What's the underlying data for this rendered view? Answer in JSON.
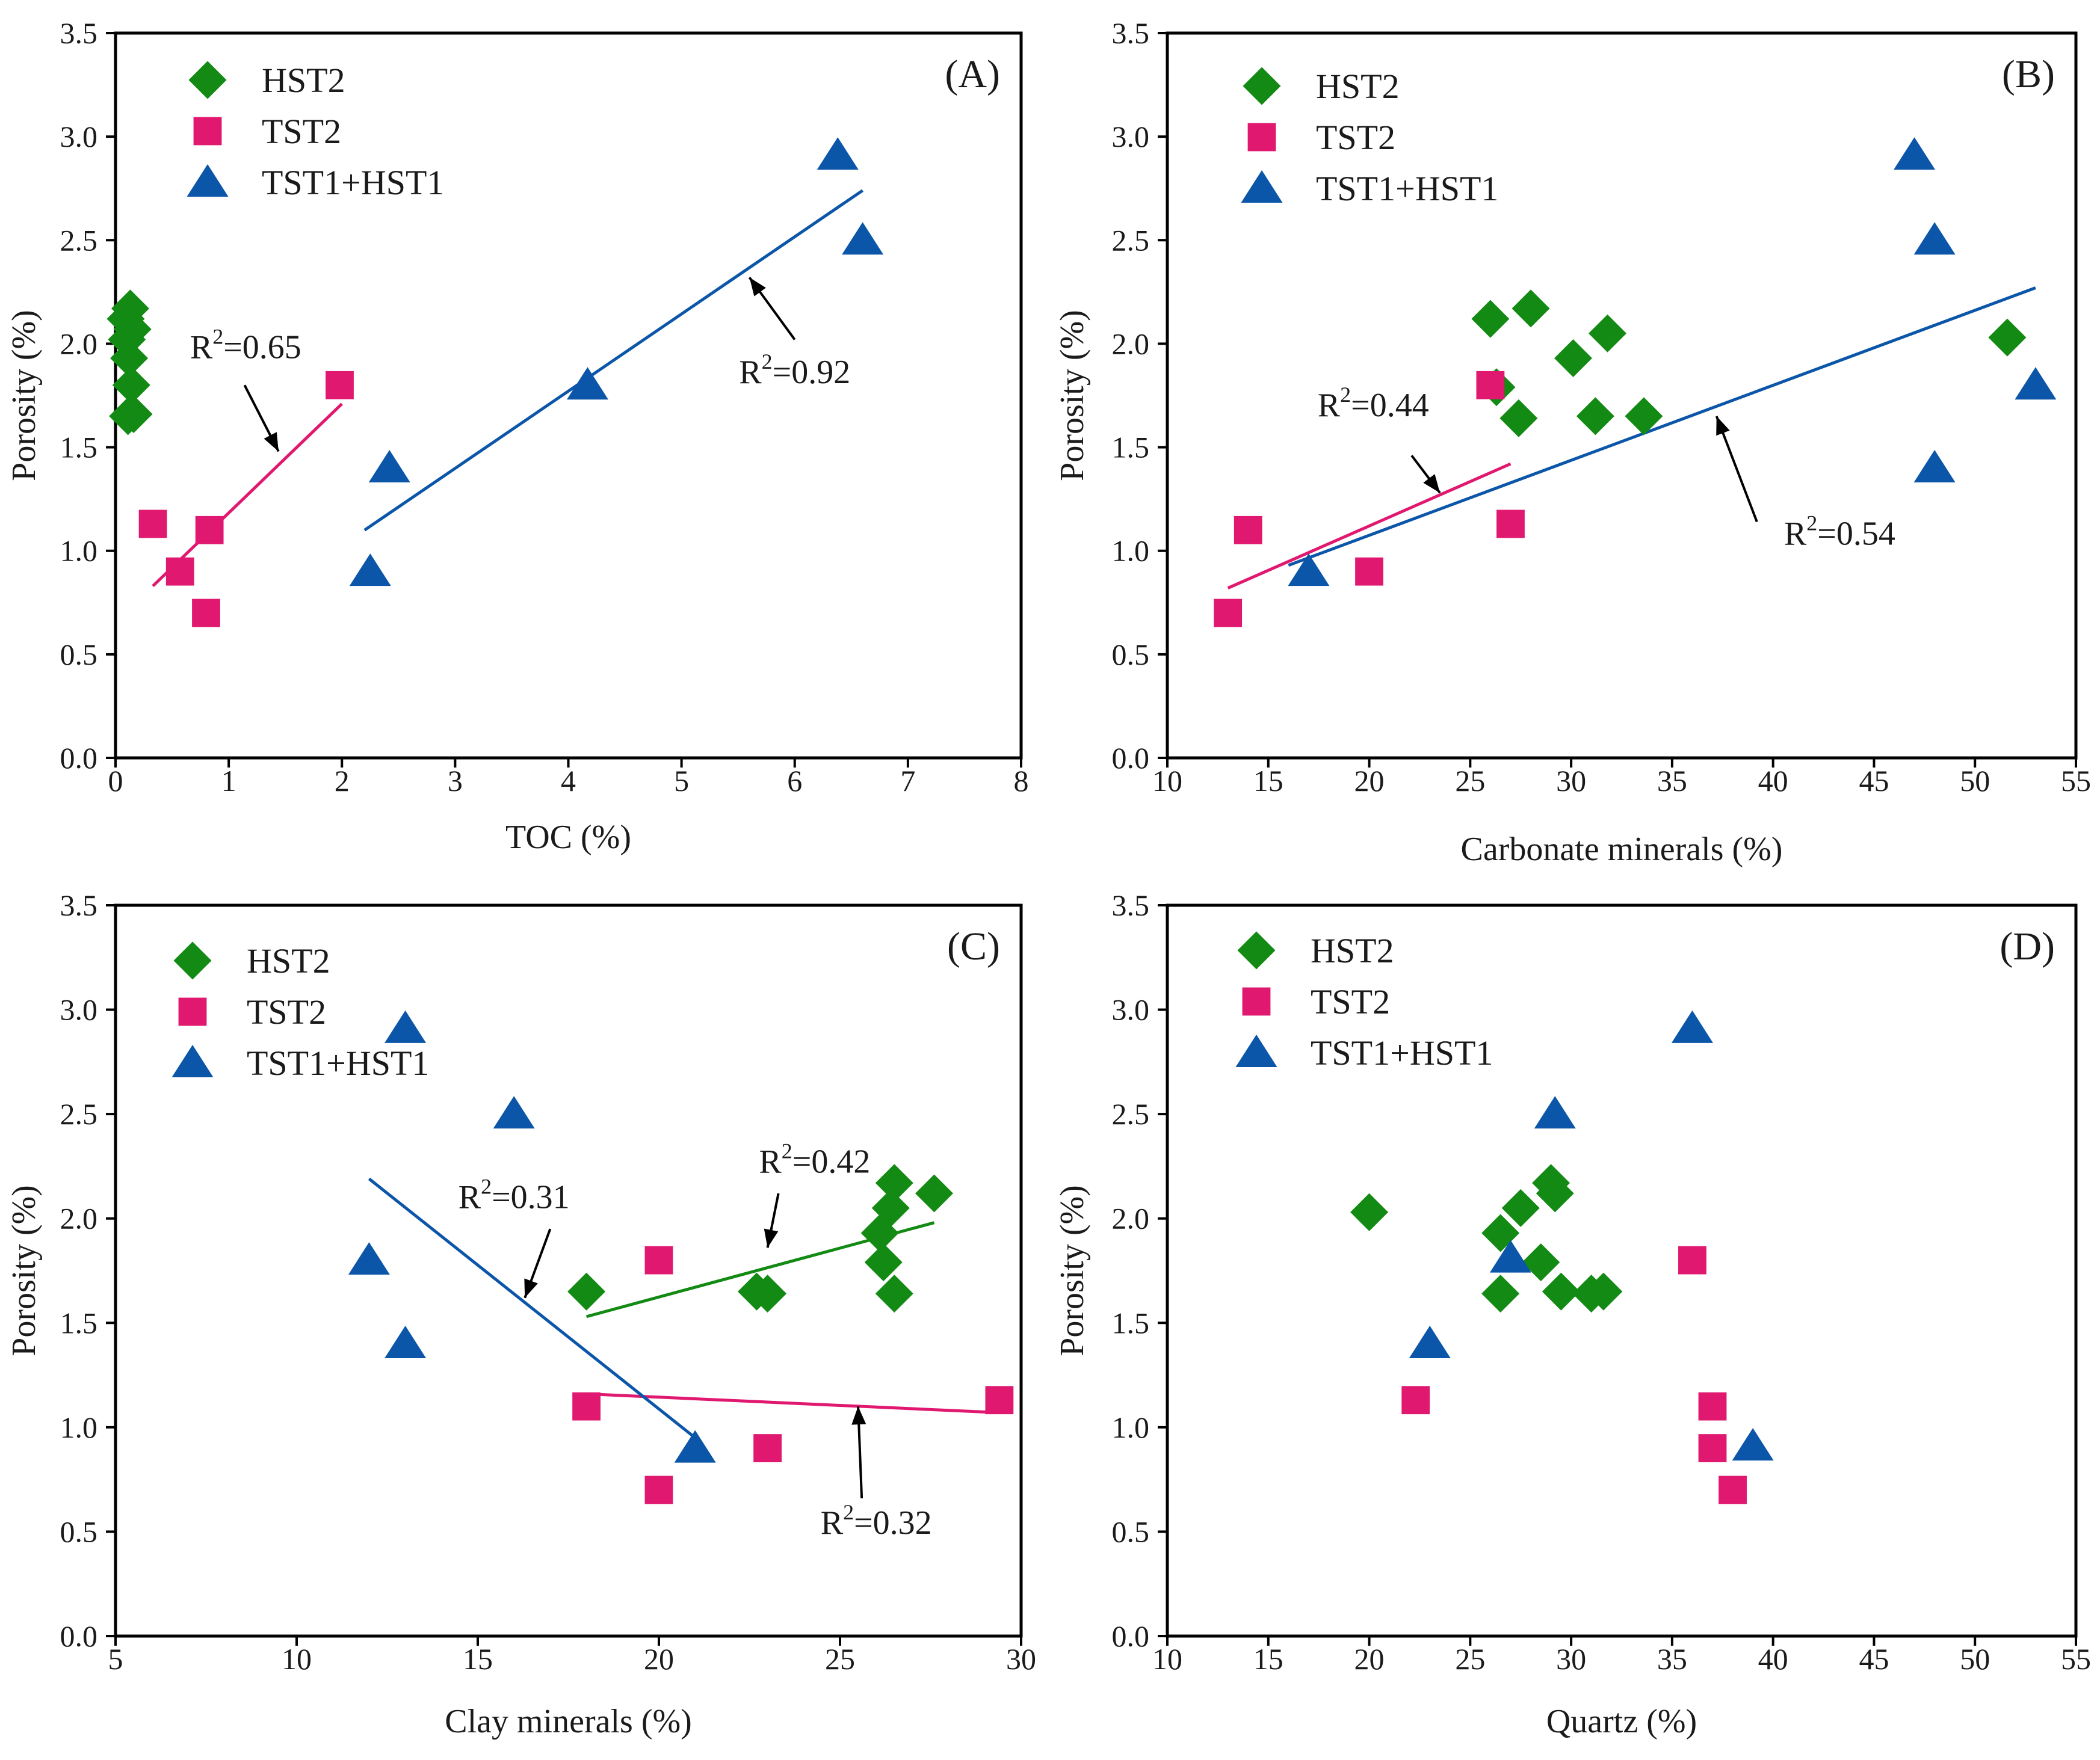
{
  "colors": {
    "HST2": "#138a13",
    "TST2": "#e0186f",
    "TST1+HST1": "#0b56a8",
    "axis": "#000000"
  },
  "chart_data": [
    {
      "id": "A",
      "type": "scatter",
      "panel_label": "(A)",
      "xlabel": "TOC (%)",
      "ylabel": "Porosity (%)",
      "xlim": [
        0,
        8
      ],
      "ylim": [
        0,
        3.5
      ],
      "xticks": [
        0,
        1,
        2,
        3,
        4,
        5,
        6,
        7,
        8
      ],
      "xtick_labels": [
        "0",
        "1",
        "2",
        "3",
        "4",
        "5",
        "6",
        "7",
        "8"
      ],
      "yticks": [
        0,
        0.5,
        1,
        1.5,
        2,
        2.5,
        3,
        3.5
      ],
      "ytick_labels": [
        "0.0",
        "0.5",
        "1.0",
        "1.5",
        "2.0",
        "2.5",
        "3.0",
        "3.5"
      ],
      "legend": {
        "position": "top-left",
        "entries": [
          "HST2",
          "TST2",
          "TST1+HST1"
        ]
      },
      "series": [
        {
          "name": "HST2",
          "marker": "diamond",
          "points": [
            [
              0.13,
              2.17
            ],
            [
              0.09,
              2.12
            ],
            [
              0.15,
              2.07
            ],
            [
              0.1,
              2.02
            ],
            [
              0.12,
              1.93
            ],
            [
              0.14,
              1.8
            ],
            [
              0.11,
              1.65
            ],
            [
              0.16,
              1.66
            ]
          ]
        },
        {
          "name": "TST2",
          "marker": "square",
          "points": [
            [
              1.98,
              1.8
            ],
            [
              0.33,
              1.13
            ],
            [
              0.83,
              1.1
            ],
            [
              0.57,
              0.9
            ],
            [
              0.8,
              0.7
            ]
          ]
        },
        {
          "name": "TST1+HST1",
          "marker": "triangle",
          "points": [
            [
              6.38,
              2.91
            ],
            [
              6.6,
              2.5
            ],
            [
              4.17,
              1.8
            ],
            [
              2.42,
              1.4
            ],
            [
              2.25,
              0.9
            ]
          ]
        }
      ],
      "fits": [
        {
          "series": "TST2",
          "from": [
            0.33,
            0.83
          ],
          "to": [
            2.0,
            1.71
          ],
          "label_value": "=0.65",
          "label_anchor": [
            1.15,
            1.93
          ],
          "arrow_start": [
            1.14,
            1.8
          ],
          "arrow_end": [
            1.44,
            1.48
          ]
        },
        {
          "series": "TST1+HST1",
          "from": [
            2.2,
            1.1
          ],
          "to": [
            6.6,
            2.74
          ],
          "label_value": "=0.92",
          "label_anchor": [
            6.0,
            1.81
          ],
          "arrow_start": [
            6.0,
            2.02
          ],
          "arrow_end": [
            5.6,
            2.32
          ]
        }
      ]
    },
    {
      "id": "B",
      "type": "scatter",
      "panel_label": "(B)",
      "xlabel": "Carbonate minerals (%)",
      "ylabel": "Porosity (%)",
      "xlim": [
        10,
        55
      ],
      "ylim": [
        0,
        3.5
      ],
      "xticks": [
        10,
        15,
        20,
        25,
        30,
        35,
        40,
        45,
        50,
        55
      ],
      "xtick_labels": [
        "10",
        "15",
        "20",
        "25",
        "30",
        "35",
        "40",
        "45",
        "50",
        "55"
      ],
      "yticks": [
        0,
        0.5,
        1,
        1.5,
        2,
        2.5,
        3,
        3.5
      ],
      "ytick_labels": [
        "0.0",
        "0.5",
        "1.0",
        "1.5",
        "2.0",
        "2.5",
        "3.0",
        "3.5"
      ],
      "legend": {
        "position": "top-left",
        "entries": [
          "HST2",
          "TST2",
          "TST1+HST1"
        ]
      },
      "series": [
        {
          "name": "HST2",
          "marker": "diamond",
          "points": [
            [
              28,
              2.17
            ],
            [
              26,
              2.12
            ],
            [
              31.8,
              2.05
            ],
            [
              30.1,
              1.93
            ],
            [
              51.6,
              2.03
            ],
            [
              26.3,
              1.79
            ],
            [
              27.4,
              1.64
            ],
            [
              31.2,
              1.65
            ],
            [
              33.6,
              1.65
            ]
          ]
        },
        {
          "name": "TST2",
          "marker": "square",
          "points": [
            [
              26,
              1.8
            ],
            [
              27,
              1.13
            ],
            [
              14,
              1.1
            ],
            [
              20,
              0.9
            ],
            [
              13,
              0.7
            ]
          ]
        },
        {
          "name": "TST1+HST1",
          "marker": "triangle",
          "points": [
            [
              47,
              2.91
            ],
            [
              48,
              2.5
            ],
            [
              53,
              1.8
            ],
            [
              48,
              1.4
            ],
            [
              17,
              0.9
            ]
          ]
        }
      ],
      "fits": [
        {
          "series": "TST2",
          "from": [
            13,
            0.82
          ],
          "to": [
            27,
            1.42
          ],
          "label_value": "=0.44",
          "label_anchor": [
            20.2,
            1.65
          ],
          "arrow_start": [
            22.1,
            1.46
          ],
          "arrow_end": [
            23.5,
            1.28
          ]
        },
        {
          "series": "TST1+HST1",
          "from": [
            16,
            0.93
          ],
          "to": [
            53,
            2.27
          ],
          "label_value": "=0.54",
          "label_anchor": [
            43.3,
            1.03
          ],
          "arrow_start": [
            39.2,
            1.14
          ],
          "arrow_end": [
            37.2,
            1.65
          ]
        }
      ]
    },
    {
      "id": "C",
      "type": "scatter",
      "panel_label": "(C)",
      "xlabel": "Clay minerals (%)",
      "ylabel": "Porosity (%)",
      "xlim": [
        5,
        30
      ],
      "ylim": [
        0,
        3.5
      ],
      "xticks": [
        5,
        10,
        15,
        20,
        25,
        30
      ],
      "xtick_labels": [
        "5",
        "10",
        "15",
        "20",
        "25",
        "30"
      ],
      "yticks": [
        0,
        0.5,
        1,
        1.5,
        2,
        2.5,
        3,
        3.5
      ],
      "ytick_labels": [
        "0.0",
        "0.5",
        "1.0",
        "1.5",
        "2.0",
        "2.5",
        "3.0",
        "3.5"
      ],
      "legend": {
        "position": "top-left",
        "entries": [
          "HST2",
          "TST2",
          "TST1+HST1"
        ]
      },
      "series": [
        {
          "name": "HST2",
          "marker": "diamond",
          "points": [
            [
              26.5,
              2.17
            ],
            [
              27.6,
              2.12
            ],
            [
              26.4,
              2.05
            ],
            [
              26.1,
              1.93
            ],
            [
              26.2,
              1.79
            ],
            [
              18,
              1.65
            ],
            [
              22.7,
              1.65
            ],
            [
              23,
              1.64
            ],
            [
              26.5,
              1.64
            ]
          ]
        },
        {
          "name": "TST2",
          "marker": "square",
          "points": [
            [
              20,
              1.8
            ],
            [
              29.4,
              1.13
            ],
            [
              18,
              1.1
            ],
            [
              23,
              0.9
            ],
            [
              20,
              0.7
            ]
          ]
        },
        {
          "name": "TST1+HST1",
          "marker": "triangle",
          "points": [
            [
              13,
              2.91
            ],
            [
              16,
              2.5
            ],
            [
              12,
              1.8
            ],
            [
              13,
              1.4
            ],
            [
              21,
              0.9
            ]
          ]
        }
      ],
      "fits": [
        {
          "series": "HST2",
          "from": [
            18,
            1.53
          ],
          "to": [
            27.6,
            1.98
          ],
          "label_value": "=0.42",
          "label_anchor": [
            24.3,
            2.22
          ],
          "arrow_start": [
            23.3,
            2.12
          ],
          "arrow_end": [
            23.0,
            1.86
          ]
        },
        {
          "series": "TST2",
          "from": [
            18,
            1.16
          ],
          "to": [
            29.4,
            1.07
          ],
          "label_value": "=0.32",
          "label_anchor": [
            26.0,
            0.49
          ],
          "arrow_start": [
            25.6,
            0.66
          ],
          "arrow_end": [
            25.5,
            1.1
          ]
        },
        {
          "series": "TST1+HST1",
          "from": [
            12,
            2.19
          ],
          "to": [
            21,
            0.95
          ],
          "label_value": "=0.31",
          "label_anchor": [
            16.0,
            2.05
          ],
          "arrow_start": [
            17.0,
            1.95
          ],
          "arrow_end": [
            16.3,
            1.62
          ]
        }
      ]
    },
    {
      "id": "D",
      "type": "scatter",
      "panel_label": "(D)",
      "xlabel": "Quartz (%)",
      "ylabel": "Porosity (%)",
      "xlim": [
        10,
        55
      ],
      "ylim": [
        0,
        3.5
      ],
      "xticks": [
        10,
        15,
        20,
        25,
        30,
        35,
        40,
        45,
        50,
        55
      ],
      "xtick_labels": [
        "10",
        "15",
        "20",
        "25",
        "30",
        "35",
        "40",
        "45",
        "50",
        "55"
      ],
      "yticks": [
        0,
        0.5,
        1,
        1.5,
        2,
        2.5,
        3,
        3.5
      ],
      "ytick_labels": [
        "0.0",
        "0.5",
        "1.0",
        "1.5",
        "2.0",
        "2.5",
        "3.0",
        "3.5"
      ],
      "legend": {
        "position": "top-left",
        "entries": [
          "HST2",
          "TST2",
          "TST1+HST1"
        ]
      },
      "series": [
        {
          "name": "HST2",
          "marker": "diamond",
          "points": [
            [
              20,
              2.03
            ],
            [
              29,
              2.17
            ],
            [
              29.2,
              2.12
            ],
            [
              27.5,
              2.05
            ],
            [
              26.5,
              1.93
            ],
            [
              28.5,
              1.79
            ],
            [
              26.5,
              1.64
            ],
            [
              29.5,
              1.65
            ],
            [
              31,
              1.64
            ],
            [
              31.6,
              1.65
            ]
          ]
        },
        {
          "name": "TST2",
          "marker": "square",
          "points": [
            [
              36,
              1.8
            ],
            [
              22.3,
              1.13
            ],
            [
              37,
              1.1
            ],
            [
              37,
              0.9
            ],
            [
              38,
              0.7
            ]
          ]
        },
        {
          "name": "TST1+HST1",
          "marker": "triangle",
          "points": [
            [
              36,
              2.91
            ],
            [
              29.2,
              2.5
            ],
            [
              27,
              1.81
            ],
            [
              23,
              1.4
            ],
            [
              39,
              0.91
            ]
          ]
        }
      ],
      "fits": []
    }
  ]
}
